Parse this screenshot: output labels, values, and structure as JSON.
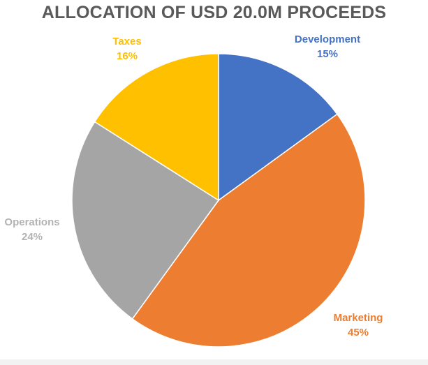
{
  "chart_data": {
    "type": "pie",
    "title": "ALLOCATION OF USD 20.0M PROCEEDS",
    "start_angle_deg": 0,
    "direction": "clockwise",
    "legend": "none",
    "slices": [
      {
        "name": "Development",
        "value": 15,
        "label": "15%",
        "color": "#4472c4"
      },
      {
        "name": "Marketing",
        "value": 45,
        "label": "45%",
        "color": "#ed7d31"
      },
      {
        "name": "Operations",
        "value": 24,
        "label": "24%",
        "color": "#a5a5a5"
      },
      {
        "name": "Taxes",
        "value": 16,
        "label": "16%",
        "color": "#ffc000"
      }
    ]
  }
}
